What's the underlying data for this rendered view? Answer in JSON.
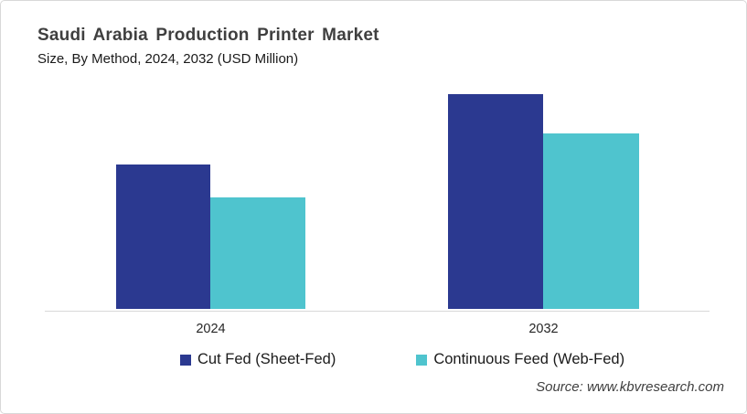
{
  "header": {
    "title": "Saudi Arabia Production Printer Market",
    "subtitle": "Size, By Method, 2024, 2032 (USD Million)"
  },
  "x_axis": {
    "labels": [
      "2024",
      "2032"
    ]
  },
  "legend": {
    "items": [
      {
        "label": "Cut Fed (Sheet-Fed)",
        "color": "#2B3990"
      },
      {
        "label": "Continuous Feed (Web-Fed)",
        "color": "#4FC4CE"
      }
    ]
  },
  "source": "Source: www.kbvresearch.com",
  "colors": {
    "cut_fed_blue": "#2B3990",
    "continuous_feed_teal": "#4FC4CE",
    "axis_line": "#D9D9D9",
    "title_text": "#3F3F3F",
    "body_text": "#1A1A1A"
  },
  "chart_data": {
    "type": "bar",
    "title": "Saudi Arabia Production Printer Market",
    "subtitle": "Size, By Method, 2024, 2032 (USD Million)",
    "categories": [
      "2024",
      "2032"
    ],
    "series": [
      {
        "name": "Cut Fed (Sheet-Fed)",
        "color": "#2B3990",
        "values": [
          158,
          235
        ]
      },
      {
        "name": "Continuous Feed (Web-Fed)",
        "color": "#4FC4CE",
        "values": [
          122,
          192
        ]
      }
    ],
    "xlabel": "",
    "ylabel": "",
    "ylim": [
      0,
      260
    ],
    "grid": false,
    "value_axis_visible": false,
    "legend_position": "bottom",
    "note": "No numeric value axis or data labels are shown in the figure; values are relative units estimated from bar heights (2032 > 2024, Cut Fed > Continuous Feed in both years)"
  }
}
